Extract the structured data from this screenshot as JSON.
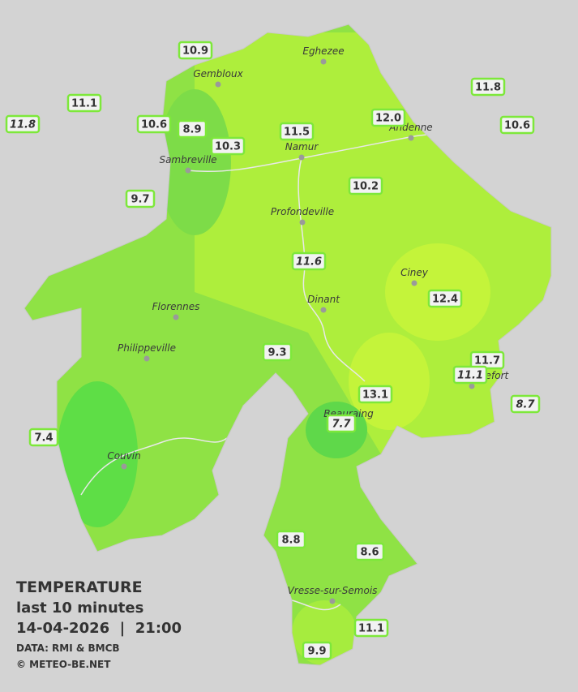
{
  "legend": {
    "title": "TEMPERATURE",
    "subtitle": "last 10 minutes",
    "datetime": "14-04-2026  |  21:00",
    "source": "DATA: RMI & BMCB",
    "copyright": "© METEO-BE.NET"
  },
  "towns": [
    "Eghezee",
    "Gembloux",
    "Andenne",
    "Namur",
    "Sambreville",
    "Profondeville",
    "Ciney",
    "Florennes",
    "Dinant",
    "Philippeville",
    "Rochefort",
    "Beauraing",
    "Couvin",
    "Vresse-sur-Semois"
  ],
  "stations": [
    {
      "value": "10.9",
      "italic": false
    },
    {
      "value": "11.1",
      "italic": false
    },
    {
      "value": "11.8",
      "italic": true
    },
    {
      "value": "10.6",
      "italic": false
    },
    {
      "value": "8.9",
      "italic": false
    },
    {
      "value": "10.3",
      "italic": false
    },
    {
      "value": "11.5",
      "italic": false
    },
    {
      "value": "12.0",
      "italic": false
    },
    {
      "value": "11.8",
      "italic": false
    },
    {
      "value": "10.6",
      "italic": false
    },
    {
      "value": "9.7",
      "italic": false
    },
    {
      "value": "10.2",
      "italic": false
    },
    {
      "value": "11.6",
      "italic": true
    },
    {
      "value": "12.4",
      "italic": false
    },
    {
      "value": "9.3",
      "italic": false
    },
    {
      "value": "11.7",
      "italic": false
    },
    {
      "value": "11.1",
      "italic": true
    },
    {
      "value": "13.1",
      "italic": false
    },
    {
      "value": "8.7",
      "italic": true
    },
    {
      "value": "7.7",
      "italic": true
    },
    {
      "value": "7.4",
      "italic": false
    },
    {
      "value": "8.8",
      "italic": false
    },
    {
      "value": "8.6",
      "italic": false
    },
    {
      "value": "11.1",
      "italic": false
    },
    {
      "value": "9.9",
      "italic": false
    }
  ]
}
